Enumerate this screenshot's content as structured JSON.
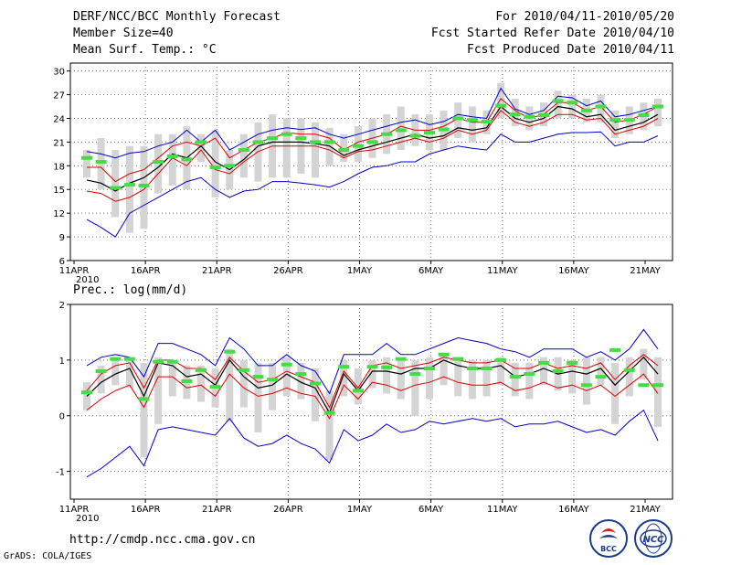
{
  "header": {
    "title": "DERF/NCC/BCC Monthly Forecast",
    "member_size": "Member Size=40",
    "variable1": "Mean Surf. Temp.: °C",
    "range": "For 2010/04/11-2010/05/20",
    "started": "Fcst Started Refer Date 2010/04/10",
    "produced": "Fcst Produced Date 2010/04/11"
  },
  "footer": {
    "url": "http://cmdp.ncc.cma.gov.cn",
    "grads": "GrADS: COLA/IGES",
    "logo1": "BCC",
    "logo2": "NCC"
  },
  "colors": {
    "box": "#d4d4d4",
    "green": "#44dd44",
    "red": "#dd0000",
    "blue": "#0000cc",
    "black": "#000000"
  },
  "chart_data": [
    {
      "type": "line",
      "title": "Mean Surf. Temp.: °C",
      "xlabel": "",
      "ylabel": "°C",
      "x_ticks": [
        "11APR",
        "16APR",
        "21APR",
        "26APR",
        "1MAY",
        "6MAY",
        "11MAY",
        "16MAY",
        "21MAY"
      ],
      "x_year_label": "2010",
      "ylim": [
        6,
        31
      ],
      "y_ticks": [
        6,
        9,
        12,
        15,
        18,
        21,
        24,
        27,
        30
      ],
      "days": 41,
      "series": [
        {
          "name": "max",
          "color": "blue",
          "values": [
            19.8,
            19.5,
            19.0,
            19.6,
            19.8,
            20.5,
            21.0,
            22.5,
            21.0,
            22.5,
            20.0,
            21.0,
            22.0,
            22.5,
            22.8,
            22.6,
            22.8,
            22.0,
            21.5,
            22.0,
            22.5,
            23.0,
            23.5,
            23.8,
            23.2,
            23.6,
            24.5,
            24.2,
            24.0,
            27.8,
            25.2,
            24.5,
            25.0,
            26.8,
            26.6,
            25.6,
            26.2,
            24.2,
            24.5,
            25.0,
            25.5
          ]
        },
        {
          "name": "upper",
          "color": "red",
          "values": [
            17.8,
            17.8,
            16.0,
            17.0,
            17.5,
            19.0,
            20.5,
            21.0,
            20.5,
            21.5,
            19.0,
            20.0,
            21.0,
            21.5,
            22.2,
            22.0,
            22.0,
            21.5,
            20.0,
            21.0,
            21.5,
            22.0,
            23.0,
            22.5,
            22.5,
            23.0,
            24.0,
            23.5,
            23.5,
            26.5,
            25.0,
            24.0,
            24.5,
            26.0,
            26.0,
            25.0,
            25.5,
            23.5,
            23.8,
            24.5,
            25.5
          ]
        },
        {
          "name": "mean",
          "color": "black",
          "values": [
            16.2,
            15.8,
            14.8,
            15.8,
            16.5,
            17.8,
            19.5,
            19.0,
            20.5,
            18.5,
            17.5,
            18.8,
            20.5,
            21.0,
            21.0,
            21.0,
            20.8,
            20.5,
            19.3,
            20.0,
            20.5,
            21.0,
            21.5,
            22.0,
            21.5,
            21.8,
            22.8,
            22.5,
            22.8,
            25.5,
            24.0,
            23.5,
            24.0,
            25.5,
            25.2,
            24.2,
            24.5,
            22.5,
            23.0,
            23.5,
            24.5
          ]
        },
        {
          "name": "lower",
          "color": "red",
          "values": [
            14.8,
            14.5,
            13.5,
            14.0,
            15.0,
            17.0,
            19.0,
            18.0,
            20.0,
            17.5,
            17.0,
            18.5,
            19.8,
            20.5,
            20.5,
            20.5,
            20.5,
            20.0,
            19.0,
            19.8,
            20.0,
            20.5,
            21.0,
            21.5,
            21.0,
            21.5,
            22.5,
            22.0,
            22.5,
            25.0,
            23.5,
            23.0,
            23.5,
            24.5,
            24.5,
            23.8,
            24.0,
            22.0,
            22.5,
            23.0,
            24.0
          ]
        },
        {
          "name": "min",
          "color": "blue",
          "values": [
            11.2,
            10.2,
            9.0,
            12.0,
            13.0,
            14.0,
            15.0,
            16.0,
            16.5,
            15.0,
            14.0,
            14.8,
            15.0,
            16.0,
            16.0,
            15.8,
            15.6,
            15.3,
            16.0,
            17.0,
            17.8,
            18.0,
            18.5,
            18.5,
            19.5,
            20.0,
            20.5,
            20.2,
            20.0,
            22.0,
            21.0,
            21.0,
            21.5,
            22.0,
            22.2,
            22.2,
            22.3,
            20.5,
            21.0,
            21.0,
            21.8
          ]
        },
        {
          "name": "box_high",
          "color": "box",
          "values": [
            20.0,
            21.5,
            20.0,
            20.5,
            20.5,
            22.0,
            22.0,
            23.0,
            22.0,
            22.5,
            20.0,
            22.0,
            23.5,
            24.5,
            24.0,
            24.0,
            23.5,
            22.8,
            22.0,
            23.0,
            24.0,
            24.5,
            25.5,
            24.5,
            24.5,
            25.0,
            26.0,
            25.5,
            25.0,
            28.5,
            26.5,
            25.5,
            26.0,
            27.5,
            27.0,
            26.5,
            27.0,
            25.0,
            25.5,
            26.0,
            26.5
          ]
        },
        {
          "name": "box_low",
          "color": "box",
          "values": [
            16.5,
            15.0,
            11.5,
            9.5,
            10.0,
            14.5,
            15.5,
            15.0,
            18.5,
            14.0,
            15.0,
            16.5,
            16.0,
            16.5,
            16.5,
            17.0,
            16.5,
            18.0,
            18.5,
            18.5,
            19.0,
            19.5,
            20.0,
            20.5,
            20.0,
            20.0,
            21.5,
            21.0,
            22.0,
            24.0,
            23.0,
            22.5,
            23.0,
            24.0,
            24.0,
            23.5,
            23.5,
            21.5,
            22.0,
            22.5,
            23.0
          ]
        },
        {
          "name": "observed",
          "color": "green",
          "values": [
            19.0,
            18.5,
            15.2,
            15.6,
            15.5,
            18.5,
            19.2,
            18.8,
            21.0,
            17.8,
            18.0,
            20.0,
            21.0,
            21.5,
            22.0,
            21.5,
            21.0,
            21.0,
            20.0,
            20.5,
            21.0,
            22.0,
            22.5,
            21.8,
            22.2,
            22.6,
            24.0,
            23.8,
            23.6,
            25.6,
            24.5,
            24.2,
            24.4,
            26.2,
            26.0,
            25.0,
            25.5,
            23.8,
            23.8,
            24.4,
            25.5
          ]
        }
      ]
    },
    {
      "type": "line",
      "title": "Prec.: log(mm/d)",
      "xlabel": "",
      "ylabel": "log(mm/d)",
      "x_ticks": [
        "11APR",
        "16APR",
        "21APR",
        "26APR",
        "1MAY",
        "6MAY",
        "11MAY",
        "16MAY",
        "21MAY"
      ],
      "x_year_label": "2010",
      "ylim": [
        -1.5,
        2.0
      ],
      "y_ticks": [
        -1,
        0,
        1,
        2
      ],
      "days": 41,
      "series": [
        {
          "name": "max",
          "color": "blue",
          "values": [
            0.9,
            1.05,
            1.1,
            1.05,
            0.7,
            1.3,
            1.3,
            1.2,
            1.1,
            0.9,
            1.4,
            1.2,
            0.9,
            0.9,
            1.1,
            0.9,
            0.8,
            0.4,
            1.1,
            1.1,
            1.1,
            1.3,
            1.1,
            1.1,
            1.2,
            1.3,
            1.4,
            1.35,
            1.3,
            1.2,
            1.15,
            1.05,
            1.2,
            1.2,
            1.2,
            1.05,
            1.15,
            1.0,
            1.2,
            1.55,
            1.2
          ]
        },
        {
          "name": "upper",
          "color": "red",
          "values": [
            0.45,
            0.75,
            0.9,
            0.95,
            0.5,
            1.0,
            1.0,
            0.85,
            0.85,
            0.65,
            1.05,
            0.8,
            0.6,
            0.65,
            0.8,
            0.7,
            0.6,
            0.15,
            0.8,
            0.5,
            0.9,
            0.95,
            0.85,
            0.9,
            0.95,
            1.05,
            1.0,
            0.95,
            0.95,
            1.0,
            0.85,
            0.85,
            0.95,
            0.85,
            0.9,
            0.85,
            0.95,
            0.65,
            0.9,
            1.1,
            0.9
          ]
        },
        {
          "name": "mean",
          "color": "black",
          "values": [
            0.35,
            0.6,
            0.75,
            0.85,
            0.35,
            0.95,
            0.9,
            0.7,
            0.75,
            0.55,
            1.0,
            0.7,
            0.5,
            0.55,
            0.75,
            0.6,
            0.5,
            0.05,
            0.75,
            0.45,
            0.8,
            0.8,
            0.75,
            0.85,
            0.85,
            1.0,
            0.9,
            0.85,
            0.85,
            0.9,
            0.7,
            0.75,
            0.85,
            0.75,
            0.8,
            0.75,
            0.85,
            0.55,
            0.8,
            1.05,
            0.75
          ]
        },
        {
          "name": "lower",
          "color": "red",
          "values": [
            0.1,
            0.3,
            0.45,
            0.55,
            0.15,
            0.7,
            0.7,
            0.5,
            0.55,
            0.35,
            0.75,
            0.5,
            0.35,
            0.4,
            0.5,
            0.4,
            0.35,
            -0.05,
            0.55,
            0.3,
            0.6,
            0.55,
            0.45,
            0.55,
            0.6,
            0.7,
            0.6,
            0.55,
            0.55,
            0.6,
            0.45,
            0.5,
            0.6,
            0.5,
            0.55,
            0.45,
            0.55,
            0.35,
            0.55,
            0.75,
            0.4
          ]
        },
        {
          "name": "min",
          "color": "blue",
          "values": [
            -1.1,
            -0.95,
            -0.75,
            -0.55,
            -0.9,
            -0.25,
            -0.2,
            -0.25,
            -0.3,
            -0.35,
            -0.05,
            -0.4,
            -0.55,
            -0.5,
            -0.35,
            -0.5,
            -0.6,
            -0.85,
            -0.25,
            -0.45,
            -0.35,
            -0.15,
            -0.3,
            -0.25,
            -0.1,
            -0.15,
            -0.1,
            -0.05,
            -0.1,
            -0.05,
            -0.2,
            -0.15,
            -0.15,
            -0.1,
            -0.2,
            -0.3,
            -0.25,
            -0.35,
            -0.1,
            0.1,
            -0.45
          ]
        },
        {
          "name": "box_high",
          "color": "box",
          "values": [
            0.6,
            0.9,
            1.05,
            1.05,
            0.95,
            1.05,
            1.0,
            0.9,
            0.9,
            0.85,
            1.2,
            1.0,
            0.95,
            0.95,
            1.05,
            0.95,
            0.85,
            0.45,
            1.0,
            0.85,
            1.0,
            1.05,
            1.0,
            1.0,
            1.05,
            1.1,
            1.05,
            1.0,
            1.0,
            1.05,
            0.95,
            0.95,
            1.05,
            1.05,
            1.0,
            1.05,
            1.05,
            0.95,
            1.05,
            1.2,
            1.05
          ]
        },
        {
          "name": "box_low",
          "color": "box",
          "values": [
            0.1,
            0.4,
            0.55,
            0.5,
            -0.75,
            -0.15,
            0.35,
            0.3,
            0.25,
            0.15,
            -0.1,
            0.15,
            -0.3,
            0.1,
            0.35,
            0.3,
            -0.1,
            -0.8,
            0.35,
            0.2,
            0.5,
            0.4,
            0.3,
            0.0,
            0.3,
            0.55,
            0.35,
            0.3,
            0.35,
            0.55,
            0.35,
            0.3,
            0.55,
            0.45,
            0.4,
            0.2,
            0.55,
            -0.15,
            0.35,
            0.65,
            -0.2
          ]
        },
        {
          "name": "observed",
          "color": "green",
          "values": [
            0.42,
            0.8,
            1.02,
            1.02,
            0.3,
            0.97,
            0.97,
            0.62,
            0.82,
            0.52,
            1.15,
            0.82,
            0.7,
            0.65,
            0.92,
            0.75,
            0.58,
            0.05,
            0.88,
            0.45,
            0.88,
            0.87,
            1.02,
            0.75,
            0.85,
            1.1,
            1.02,
            0.85,
            0.85,
            1.0,
            0.7,
            0.75,
            0.95,
            0.8,
            0.95,
            0.55,
            0.7,
            1.18,
            0.82,
            0.55,
            0.55
          ]
        }
      ]
    }
  ]
}
